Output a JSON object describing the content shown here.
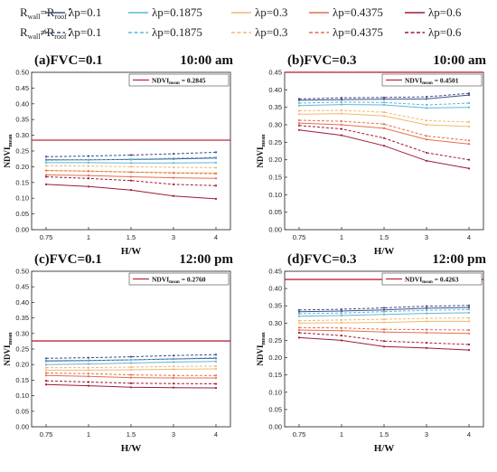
{
  "legend": {
    "row_labels": [
      {
        "main": "R",
        "sub1": "wall",
        "rel": "=R",
        "sub2": "roof",
        "colon": "："
      },
      {
        "main": "R",
        "sub1": "wall",
        "rel": "≠R",
        "sub2": "roof",
        "colon": "："
      }
    ],
    "entries": [
      "λp=0.1",
      "λp=0.1875",
      "λp=0.3",
      "λp=0.4375",
      "λp=0.6"
    ],
    "colors": [
      "#3f4f8a",
      "#5fb7d6",
      "#f2b86e",
      "#e36f4e",
      "#a01a35"
    ],
    "styles": [
      "solid",
      "dashed"
    ]
  },
  "ref_color": "#c0263a",
  "chart_data": [
    {
      "type": "line",
      "title_left": "(a)FVC=0.1",
      "title_right": "10:00 am",
      "ylabel_main": "NDVI",
      "ylabel_sub": "mean",
      "xlabel": "H/W",
      "categories": [
        "0.75",
        "1",
        "1.5",
        "3",
        "4"
      ],
      "ylim": [
        0,
        0.5
      ],
      "yticks": [
        "0.00",
        "0.05",
        "0.10",
        "0.15",
        "0.20",
        "0.25",
        "0.30",
        "0.35",
        "0.40",
        "0.45",
        "0.50"
      ],
      "ref_line": {
        "main": "NDVI",
        "sub": "mean",
        "value_text": " = 0.2845",
        "value": 0.2845
      },
      "series": [
        {
          "style": "solid",
          "values": [
            0.222,
            0.222,
            0.223,
            0.225,
            0.228
          ]
        },
        {
          "style": "solid",
          "values": [
            0.213,
            0.213,
            0.212,
            0.212,
            0.213
          ]
        },
        {
          "style": "solid",
          "values": [
            0.188,
            0.186,
            0.183,
            0.181,
            0.18
          ]
        },
        {
          "style": "solid",
          "values": [
            0.174,
            0.172,
            0.168,
            0.165,
            0.163
          ]
        },
        {
          "style": "solid",
          "values": [
            0.144,
            0.137,
            0.126,
            0.107,
            0.098
          ]
        },
        {
          "style": "dashed",
          "values": [
            0.232,
            0.234,
            0.237,
            0.241,
            0.246
          ]
        },
        {
          "style": "dashed",
          "values": [
            0.22,
            0.222,
            0.224,
            0.227,
            0.23
          ]
        },
        {
          "style": "dashed",
          "values": [
            0.203,
            0.202,
            0.2,
            0.198,
            0.197
          ]
        },
        {
          "style": "dashed",
          "values": [
            0.188,
            0.186,
            0.183,
            0.18,
            0.178
          ]
        },
        {
          "style": "dashed",
          "values": [
            0.168,
            0.163,
            0.156,
            0.144,
            0.14
          ]
        }
      ]
    },
    {
      "type": "line",
      "title_left": "(b)FVC=0.3",
      "title_right": "10:00 am",
      "ylabel_main": "NDVI",
      "ylabel_sub": "mean",
      "xlabel": "H/W",
      "categories": [
        "0.75",
        "1",
        "1.5",
        "3",
        "4"
      ],
      "ylim": [
        0,
        0.45
      ],
      "yticks": [
        "0.00",
        "0.05",
        "0.10",
        "0.15",
        "0.20",
        "0.25",
        "0.30",
        "0.35",
        "0.40",
        "0.45"
      ],
      "ref_line": {
        "main": "NDVI",
        "sub": "mean",
        "value_text": " = 0.4501",
        "value": 0.4501
      },
      "series": [
        {
          "style": "solid",
          "values": [
            0.37,
            0.372,
            0.373,
            0.374,
            0.385
          ]
        },
        {
          "style": "solid",
          "values": [
            0.355,
            0.358,
            0.357,
            0.348,
            0.35
          ]
        },
        {
          "style": "solid",
          "values": [
            0.33,
            0.332,
            0.325,
            0.3,
            0.295
          ]
        },
        {
          "style": "solid",
          "values": [
            0.305,
            0.3,
            0.29,
            0.258,
            0.245
          ]
        },
        {
          "style": "solid",
          "values": [
            0.285,
            0.27,
            0.24,
            0.197,
            0.175
          ]
        },
        {
          "style": "dashed",
          "values": [
            0.374,
            0.377,
            0.378,
            0.38,
            0.39
          ]
        },
        {
          "style": "dashed",
          "values": [
            0.362,
            0.365,
            0.364,
            0.357,
            0.362
          ]
        },
        {
          "style": "dashed",
          "values": [
            0.34,
            0.341,
            0.336,
            0.312,
            0.308
          ]
        },
        {
          "style": "dashed",
          "values": [
            0.313,
            0.31,
            0.302,
            0.268,
            0.255
          ]
        },
        {
          "style": "dashed",
          "values": [
            0.298,
            0.288,
            0.262,
            0.22,
            0.2
          ]
        }
      ]
    },
    {
      "type": "line",
      "title_left": "(c)FVC=0.1",
      "title_right": "12:00 pm",
      "ylabel_main": "NDVI",
      "ylabel_sub": "mean",
      "xlabel": "H/W",
      "categories": [
        "0.75",
        "1",
        "1.5",
        "3",
        "4"
      ],
      "ylim": [
        0,
        0.5
      ],
      "yticks": [
        "0.00",
        "0.05",
        "0.10",
        "0.15",
        "0.20",
        "0.25",
        "0.30",
        "0.35",
        "0.40",
        "0.45",
        "0.50"
      ],
      "ref_line": {
        "main": "NDVI",
        "sub": "mean",
        "value_text": " = 0.2760",
        "value": 0.276
      },
      "series": [
        {
          "style": "solid",
          "values": [
            0.212,
            0.213,
            0.215,
            0.218,
            0.22
          ]
        },
        {
          "style": "solid",
          "values": [
            0.2,
            0.202,
            0.205,
            0.208,
            0.21
          ]
        },
        {
          "style": "solid",
          "values": [
            0.182,
            0.182,
            0.183,
            0.185,
            0.186
          ]
        },
        {
          "style": "solid",
          "values": [
            0.165,
            0.162,
            0.158,
            0.157,
            0.157
          ]
        },
        {
          "style": "solid",
          "values": [
            0.136,
            0.132,
            0.127,
            0.126,
            0.125
          ]
        },
        {
          "style": "dashed",
          "values": [
            0.22,
            0.222,
            0.225,
            0.229,
            0.232
          ]
        },
        {
          "style": "dashed",
          "values": [
            0.21,
            0.212,
            0.215,
            0.219,
            0.222
          ]
        },
        {
          "style": "dashed",
          "values": [
            0.19,
            0.19,
            0.192,
            0.194,
            0.195
          ]
        },
        {
          "style": "dashed",
          "values": [
            0.173,
            0.171,
            0.167,
            0.165,
            0.165
          ]
        },
        {
          "style": "dashed",
          "values": [
            0.148,
            0.144,
            0.14,
            0.139,
            0.138
          ]
        }
      ]
    },
    {
      "type": "line",
      "title_left": "(d)FVC=0.3",
      "title_right": "12:00 pm",
      "ylabel_main": "NDVI",
      "ylabel_sub": "mean",
      "xlabel": "H/W",
      "categories": [
        "0.75",
        "1",
        "1.5",
        "3",
        "4"
      ],
      "ylim": [
        0,
        0.45
      ],
      "yticks": [
        "0.00",
        "0.05",
        "0.10",
        "0.15",
        "0.20",
        "0.25",
        "0.30",
        "0.35",
        "0.40",
        "0.45"
      ],
      "ref_line": {
        "main": "NDVI",
        "sub": "mean",
        "value_text": " = 0.4263",
        "value": 0.4263
      },
      "series": [
        {
          "style": "solid",
          "values": [
            0.333,
            0.335,
            0.338,
            0.343,
            0.345
          ]
        },
        {
          "style": "solid",
          "values": [
            0.32,
            0.322,
            0.325,
            0.328,
            0.33
          ]
        },
        {
          "style": "solid",
          "values": [
            0.3,
            0.301,
            0.302,
            0.305,
            0.305
          ]
        },
        {
          "style": "solid",
          "values": [
            0.28,
            0.278,
            0.274,
            0.272,
            0.27
          ]
        },
        {
          "style": "solid",
          "values": [
            0.258,
            0.25,
            0.232,
            0.228,
            0.222
          ]
        },
        {
          "style": "dashed",
          "values": [
            0.338,
            0.34,
            0.344,
            0.349,
            0.351
          ]
        },
        {
          "style": "dashed",
          "values": [
            0.327,
            0.329,
            0.333,
            0.337,
            0.339
          ]
        },
        {
          "style": "dashed",
          "values": [
            0.307,
            0.309,
            0.311,
            0.314,
            0.315
          ]
        },
        {
          "style": "dashed",
          "values": [
            0.287,
            0.286,
            0.282,
            0.281,
            0.28
          ]
        },
        {
          "style": "dashed",
          "values": [
            0.272,
            0.264,
            0.248,
            0.243,
            0.238
          ]
        }
      ]
    }
  ]
}
